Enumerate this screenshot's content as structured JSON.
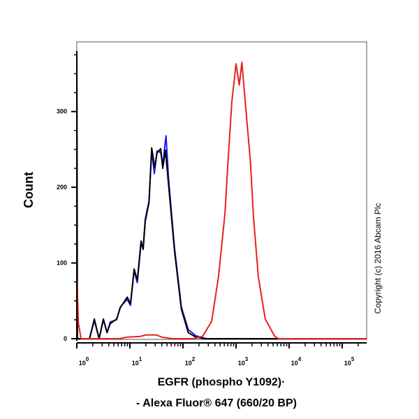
{
  "chart_data": {
    "type": "line",
    "title": "",
    "xlabel_line1": "EGFR (phospho Y1092)·",
    "xlabel_line2": "- Alexa Fluor® 647 (660/20 BP)",
    "ylabel": "Count",
    "x_scale": "log",
    "x_ticks": [
      {
        "exp": 0,
        "base": "10",
        "sup": "0"
      },
      {
        "exp": 1,
        "base": "10",
        "sup": "1"
      },
      {
        "exp": 2,
        "base": "10",
        "sup": "2"
      },
      {
        "exp": 3,
        "base": "10",
        "sup": "3"
      },
      {
        "exp": 4,
        "base": "10",
        "sup": "4"
      },
      {
        "exp": 5,
        "base": "10",
        "sup": "5"
      }
    ],
    "y_ticks": [
      0,
      100,
      200,
      300
    ],
    "xlim_log10": [
      0,
      5.46
    ],
    "ylim": [
      0,
      392
    ],
    "grid": false,
    "annotation": "Copyright (c) 2016 Abcam Plc",
    "series": [
      {
        "color": "#1a1aff",
        "points_log10x_count": [
          [
            0,
            380
          ],
          [
            0.01,
            0
          ],
          [
            0.24,
            0
          ],
          [
            0.33,
            24
          ],
          [
            0.42,
            0
          ],
          [
            0.5,
            25
          ],
          [
            0.57,
            8
          ],
          [
            0.63,
            22
          ],
          [
            0.75,
            25
          ],
          [
            0.82,
            42
          ],
          [
            0.95,
            52
          ],
          [
            1.01,
            44
          ],
          [
            1.08,
            90
          ],
          [
            1.14,
            74
          ],
          [
            1.21,
            126
          ],
          [
            1.25,
            120
          ],
          [
            1.29,
            158
          ],
          [
            1.36,
            182
          ],
          [
            1.41,
            248
          ],
          [
            1.46,
            218
          ],
          [
            1.51,
            248
          ],
          [
            1.58,
            246
          ],
          [
            1.62,
            230
          ],
          [
            1.68,
            268
          ],
          [
            1.73,
            210
          ],
          [
            1.84,
            120
          ],
          [
            1.97,
            42
          ],
          [
            2.1,
            12
          ],
          [
            2.24,
            4
          ],
          [
            2.38,
            1
          ],
          [
            2.45,
            0
          ],
          [
            5.46,
            0
          ]
        ]
      },
      {
        "color": "#000000",
        "points_log10x_count": [
          [
            0,
            380
          ],
          [
            0.01,
            0
          ],
          [
            0.24,
            0
          ],
          [
            0.33,
            26
          ],
          [
            0.42,
            0
          ],
          [
            0.5,
            26
          ],
          [
            0.57,
            8
          ],
          [
            0.63,
            20
          ],
          [
            0.75,
            26
          ],
          [
            0.82,
            41
          ],
          [
            0.95,
            55
          ],
          [
            1.01,
            46
          ],
          [
            1.08,
            92
          ],
          [
            1.14,
            77
          ],
          [
            1.21,
            129
          ],
          [
            1.25,
            118
          ],
          [
            1.29,
            155
          ],
          [
            1.36,
            180
          ],
          [
            1.41,
            252
          ],
          [
            1.47,
            226
          ],
          [
            1.51,
            245
          ],
          [
            1.58,
            251
          ],
          [
            1.62,
            225
          ],
          [
            1.67,
            249
          ],
          [
            1.73,
            202
          ],
          [
            1.84,
            116
          ],
          [
            1.97,
            39
          ],
          [
            2.1,
            8
          ],
          [
            2.24,
            2
          ],
          [
            2.41,
            0
          ],
          [
            5.46,
            0
          ]
        ]
      },
      {
        "color": "#e8201c",
        "points_log10x_count": [
          [
            0,
            85
          ],
          [
            0.03,
            20
          ],
          [
            0.08,
            0
          ],
          [
            0.8,
            0
          ],
          [
            0.95,
            2
          ],
          [
            1.2,
            3
          ],
          [
            1.3,
            5
          ],
          [
            1.5,
            5
          ],
          [
            1.6,
            2
          ],
          [
            1.8,
            0
          ],
          [
            2.2,
            0
          ],
          [
            2.37,
            3
          ],
          [
            2.54,
            23
          ],
          [
            2.67,
            82
          ],
          [
            2.79,
            165
          ],
          [
            2.85,
            235
          ],
          [
            2.92,
            312
          ],
          [
            3.0,
            363
          ],
          [
            3.06,
            335
          ],
          [
            3.11,
            365
          ],
          [
            3.2,
            291
          ],
          [
            3.27,
            235
          ],
          [
            3.33,
            159
          ],
          [
            3.42,
            82
          ],
          [
            3.55,
            26
          ],
          [
            3.73,
            3
          ],
          [
            3.8,
            0
          ],
          [
            5.46,
            0
          ]
        ]
      }
    ]
  }
}
